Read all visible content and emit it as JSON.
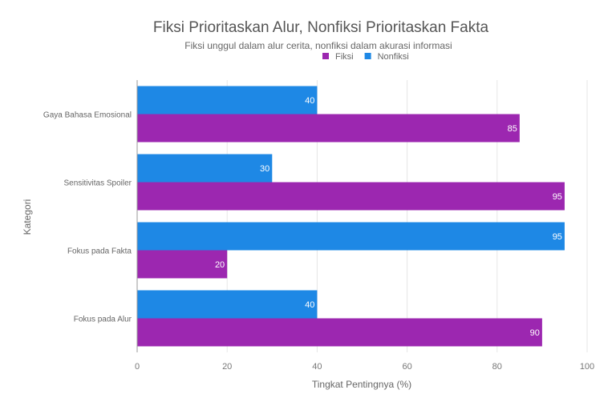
{
  "chart_data": {
    "type": "bar",
    "orientation": "horizontal",
    "title": "Fiksi Prioritaskan Alur, Nonfiksi Prioritaskan Fakta",
    "subtitle": "Fiksi unggul dalam alur cerita, nonfiksi dalam akurasi informasi",
    "xlabel": "Tingkat Pentingnya (%)",
    "ylabel": "Kategori",
    "xlim": [
      0,
      100
    ],
    "xticks": [
      "0",
      "20",
      "40",
      "60",
      "80",
      "100"
    ],
    "grid": true,
    "legend_position": "top",
    "categories": [
      "Gaya Bahasa Emosional",
      "Sensitivitas Spoiler",
      "Fokus pada Fakta",
      "Fokus pada Alur"
    ],
    "series": [
      {
        "name": "Fiksi",
        "color": "#9c27b0",
        "values": [
          85,
          95,
          20,
          90
        ]
      },
      {
        "name": "Nonfiksi",
        "color": "#1e88e5",
        "values": [
          40,
          30,
          95,
          40
        ]
      }
    ]
  }
}
